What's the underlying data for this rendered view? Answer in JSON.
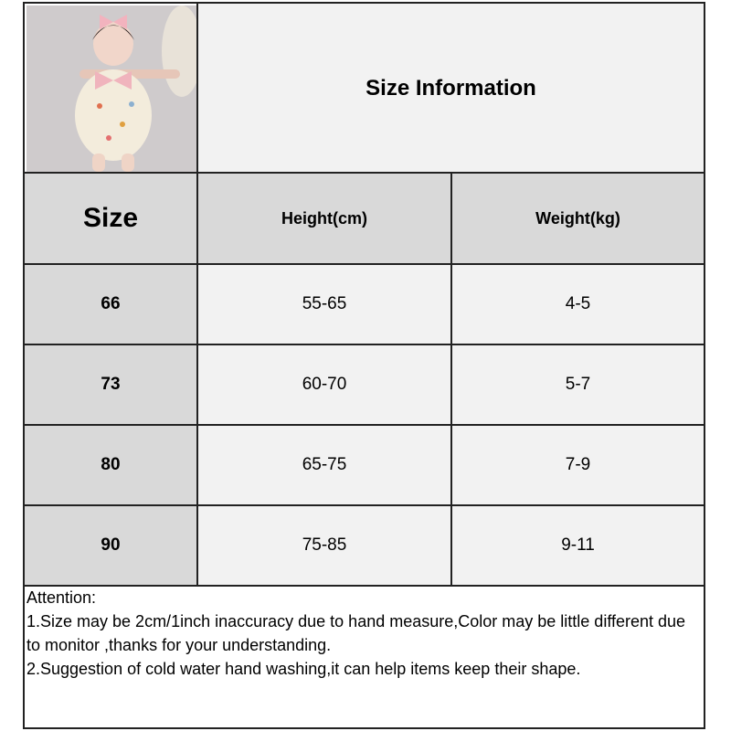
{
  "title": "Size Information",
  "headers": {
    "size": "Size",
    "height": "Height(cm)",
    "weight": "Weight(kg)"
  },
  "rows": [
    {
      "size": "66",
      "height": "55-65",
      "weight": "4-5"
    },
    {
      "size": "73",
      "height": "60-70",
      "weight": "5-7"
    },
    {
      "size": "80",
      "height": "65-75",
      "weight": "7-9"
    },
    {
      "size": "90",
      "height": "75-85",
      "weight": "9-11"
    }
  ],
  "notes": {
    "heading": "Attention:",
    "items": [
      "1.Size may be 2cm/1inch inaccuracy due to hand measure,Color may be little different due to monitor ,thanks for your understanding.",
      "2.Suggestion of cold water hand washing,it can help items keep their shape."
    ]
  },
  "colors": {
    "header_fill": "#d9d9d9",
    "cell_fill": "#f2f2f2",
    "border": "#222222"
  }
}
